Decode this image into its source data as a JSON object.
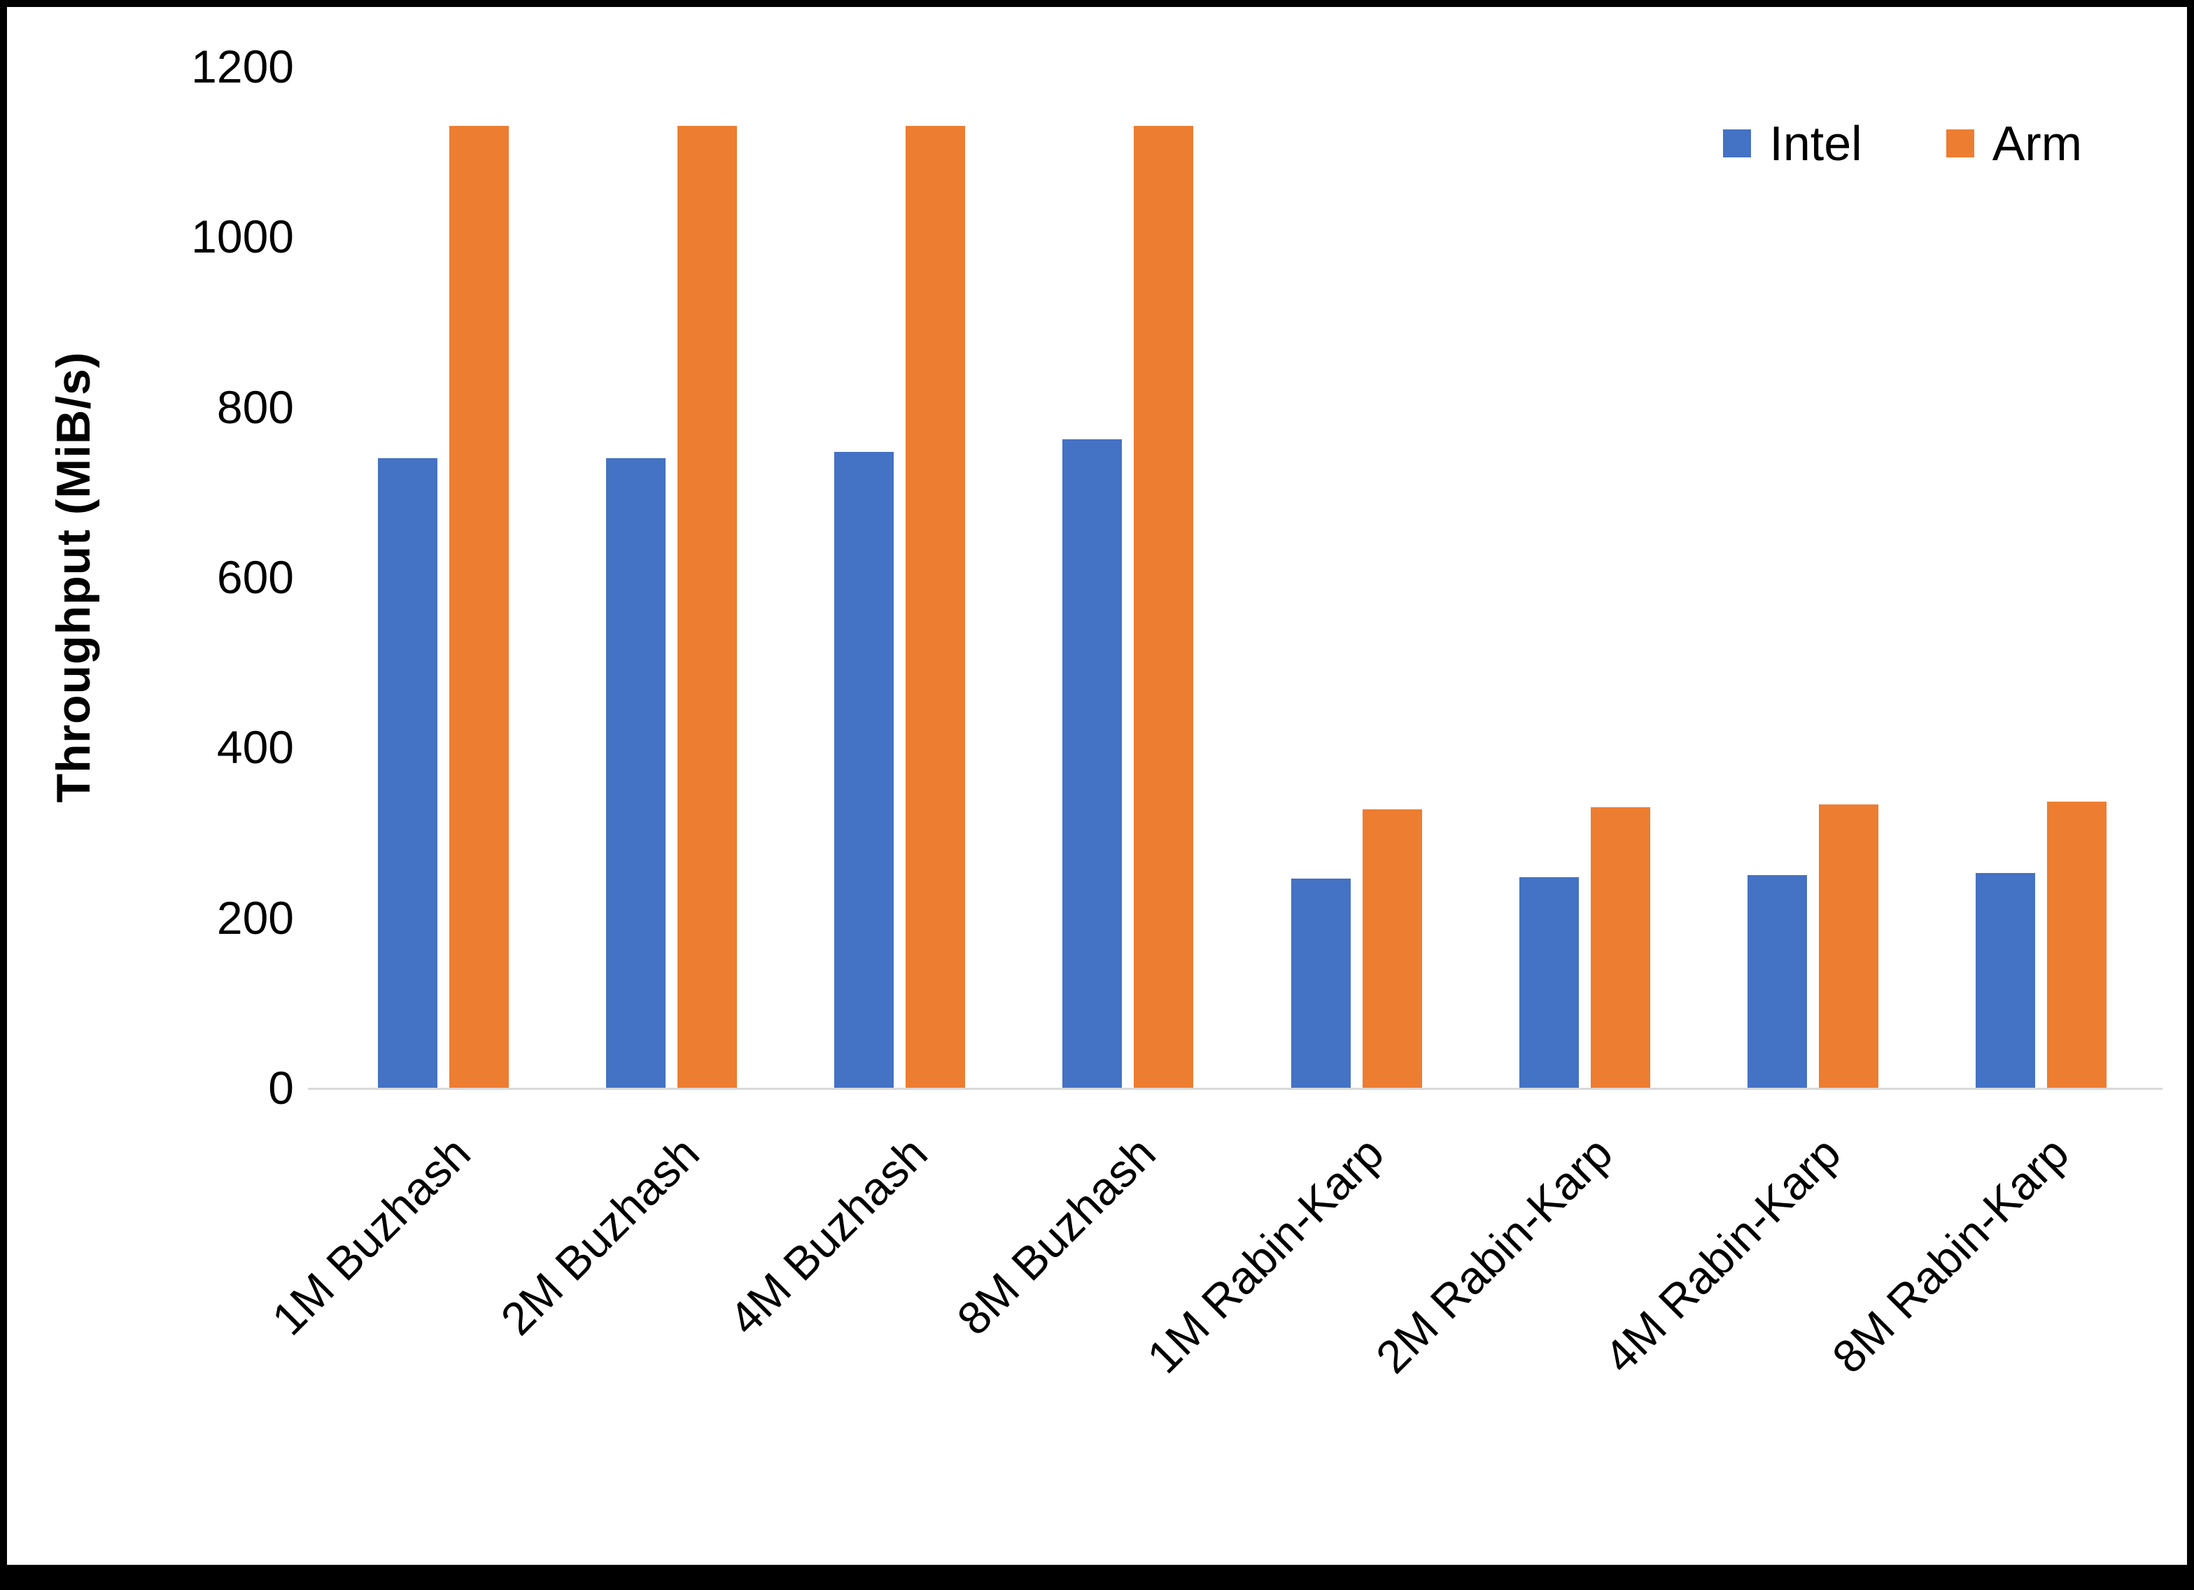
{
  "chart_data": {
    "type": "bar",
    "title": "",
    "xlabel": "",
    "ylabel": "Throughput (MiB/s)",
    "ylim": [
      0,
      1200
    ],
    "yticks": [
      0,
      200,
      400,
      600,
      800,
      1000,
      1200
    ],
    "grid": false,
    "legend_position": "top-right",
    "categories": [
      "1M Buzhash",
      "2M Buzhash",
      "4M Buzhash",
      "8M Buzhash",
      "1M Rabin-Karp",
      "2M Rabin-Karp",
      "4M Rabin-Karp",
      "8M Rabin-Karp"
    ],
    "series": [
      {
        "name": "Intel",
        "color": "#4472C4",
        "values": [
          740,
          740,
          747,
          762,
          246,
          247,
          250,
          252
        ]
      },
      {
        "name": "Arm",
        "color": "#ED7D31",
        "values": [
          1130,
          1130,
          1130,
          1130,
          327,
          330,
          333,
          336
        ]
      }
    ]
  }
}
